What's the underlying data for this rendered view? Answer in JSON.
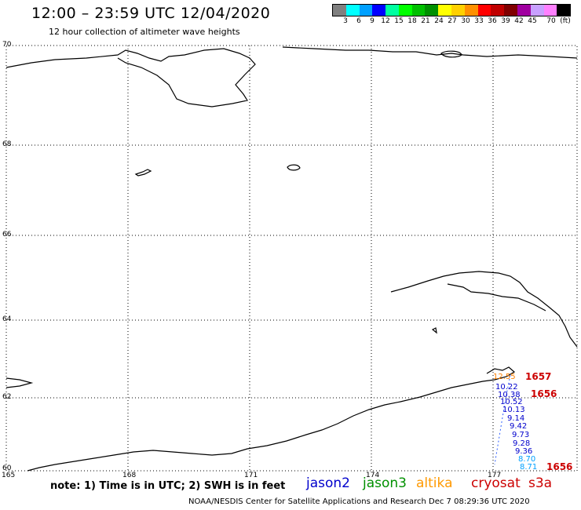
{
  "header": {
    "title": "12:00 – 23:59 UTC 12/04/2020",
    "subtitle": "12 hour collection of altimeter wave heights"
  },
  "legend": {
    "unit": "(ft)",
    "swatch_colors": [
      "#808080",
      "#00ffff",
      "#00a0ff",
      "#0000ff",
      "#00ffa0",
      "#00ff00",
      "#00c000",
      "#009000",
      "#ffff00",
      "#ffd000",
      "#ff9000",
      "#ff0000",
      "#c00000",
      "#800000",
      "#a000a0",
      "#c8a0ff",
      "#ff80ff",
      "#000000"
    ],
    "ticks": [
      "3",
      "6",
      "9",
      "12",
      "15",
      "18",
      "21",
      "24",
      "27",
      "30",
      "33",
      "36",
      "39",
      "42",
      "45",
      "70"
    ]
  },
  "map": {
    "lat_labels": [
      "70",
      "68",
      "66",
      "64",
      "62",
      "60"
    ],
    "lon_labels": [
      "165",
      "168",
      "171",
      "174",
      "177"
    ]
  },
  "observations": {
    "values": [
      {
        "text": "12.55",
        "color": "#ff8000"
      },
      {
        "text": "10.22",
        "color": "#0000cc"
      },
      {
        "text": "10.38",
        "color": "#0000cc"
      },
      {
        "text": "10.52",
        "color": "#0000cc"
      },
      {
        "text": "10.13",
        "color": "#0000cc"
      },
      {
        "text": "9.14",
        "color": "#0000cc"
      },
      {
        "text": "9.42",
        "color": "#0000cc"
      },
      {
        "text": "9.73",
        "color": "#0000cc"
      },
      {
        "text": "9.28",
        "color": "#0000cc"
      },
      {
        "text": "9.36",
        "color": "#0000cc"
      },
      {
        "text": "8.70",
        "color": "#00a0ff"
      },
      {
        "text": "8.71",
        "color": "#00a0ff"
      }
    ],
    "times": [
      "1657",
      "1656",
      "1656"
    ],
    "time_color": "#cc0000"
  },
  "footer": {
    "note": "note: 1) Time is in UTC; 2) SWH is in feet",
    "source": "NOAA/NESDIS Center for Satellite Applications and Research   Dec  7 08:29:36 UTC 2020",
    "satellites": [
      {
        "name": "jason2",
        "color": "#0000cc"
      },
      {
        "name": "jason3",
        "color": "#009000"
      },
      {
        "name": "altika",
        "color": "#ff9900"
      },
      {
        "name": "cryosat",
        "color": "#cc0000"
      },
      {
        "name": "s3a",
        "color": "#cc0000"
      }
    ]
  }
}
